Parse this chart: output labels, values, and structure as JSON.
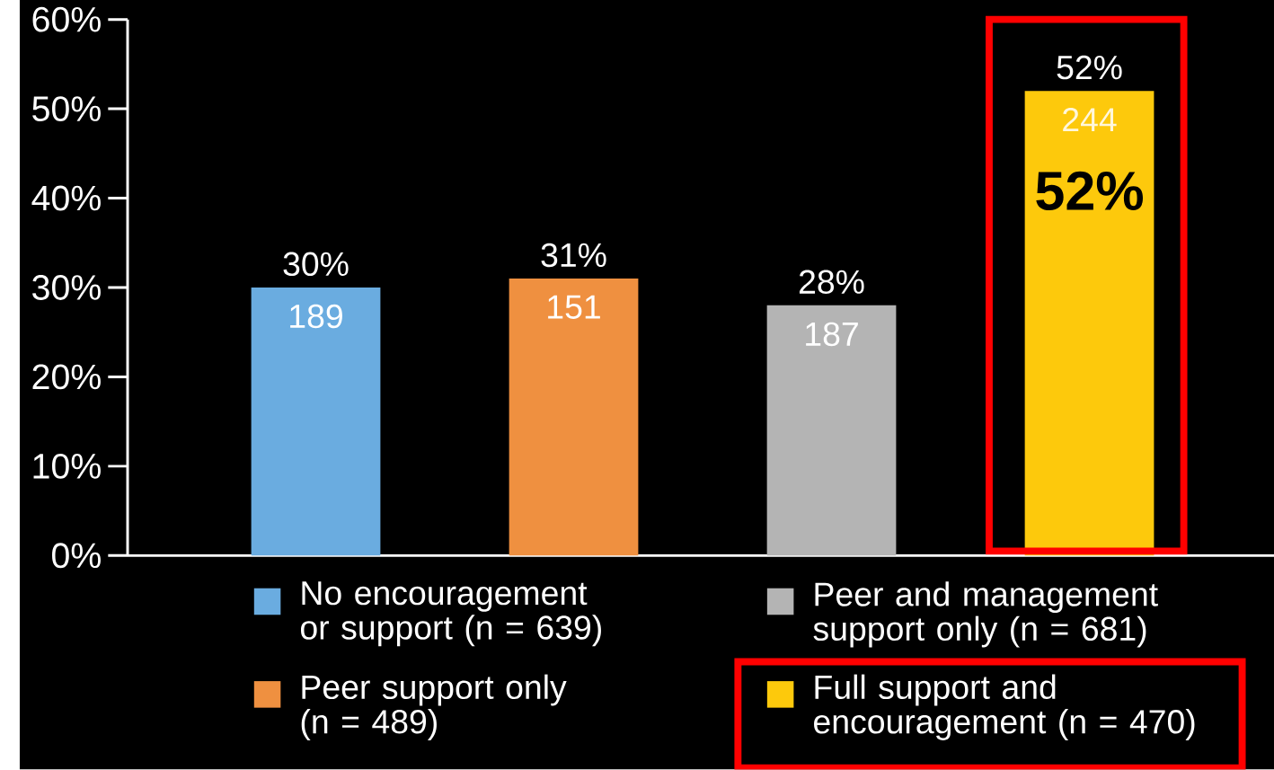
{
  "chart_data": {
    "type": "bar",
    "categories": [
      null,
      null,
      null,
      null
    ],
    "series": [
      {
        "name": "No encouragement or support (n = 639)",
        "color": "#6aace0",
        "values": [
          30,
          null,
          null,
          null
        ],
        "value_labels": [
          "30%",
          null,
          null,
          null
        ]
      },
      {
        "name": "Peer support only (n = 489)",
        "color": "#ef9040",
        "values": [
          null,
          31,
          null,
          null
        ],
        "value_labels": [
          null,
          "31%",
          null,
          null
        ]
      },
      {
        "name": "Peer and management support only (n = 681)",
        "color": "#b4b4b4",
        "values": [
          null,
          null,
          28,
          null
        ],
        "value_labels": [
          null,
          null,
          "28%",
          null
        ]
      },
      {
        "name": "Full support and encouragement (n = 470)",
        "color": "#fdc90c",
        "values": [
          null,
          null,
          null,
          52
        ],
        "value_labels": [
          null,
          null,
          null,
          "52%"
        ]
      }
    ],
    "ylim": [
      0,
      60
    ],
    "yticks": [
      {
        "value": 0,
        "label": "0%"
      },
      {
        "value": 10,
        "label": "10%"
      },
      {
        "value": 20,
        "label": "20%"
      },
      {
        "value": 30,
        "label": "30%"
      },
      {
        "value": 40,
        "label": "40%"
      },
      {
        "value": 50,
        "label": "50%"
      },
      {
        "value": 60,
        "label": "60%"
      }
    ],
    "legend": "bottom",
    "annotations": [
      "189",
      "151",
      "187",
      "244",
      "52%"
    ]
  }
}
